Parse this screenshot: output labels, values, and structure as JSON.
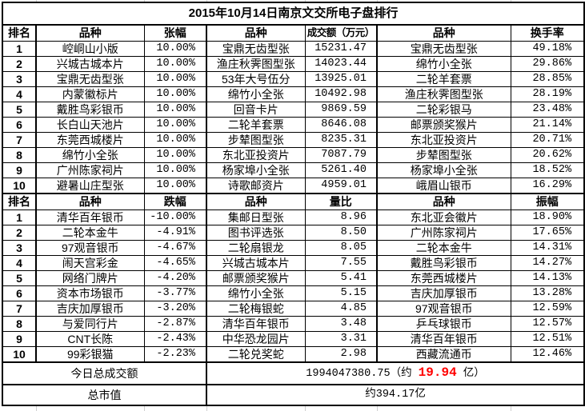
{
  "title": "2015年10月14日南京文交所电子盘排行",
  "colors": {
    "highlight": "#ff0000",
    "border": "#000000",
    "text": "#000000"
  },
  "chart_data": {
    "type": "table",
    "title": "2015年10月14日南京文交所电子盘排行",
    "sections": [
      "涨幅/成交额/换手率排行",
      "跌幅/量比/振幅排行"
    ]
  },
  "section1": {
    "headers": [
      "排名",
      "品种",
      "张幅",
      "品种",
      "成交额（万元）",
      "品种",
      "换手率"
    ],
    "rows": [
      [
        "1",
        "崆峒山小版",
        "10.00%",
        "宝鼎无齿型张",
        "15231.47",
        "宝鼎无齿型张",
        "49.18%"
      ],
      [
        "2",
        "兴城古城本片",
        "10.00%",
        "渔庄秋霁图型张",
        "14023.44",
        "绵竹小全张",
        "29.86%"
      ],
      [
        "3",
        "宝鼎无齿型张",
        "10.00%",
        "53年大号伍分",
        "13925.01",
        "二轮羊套票",
        "28.85%"
      ],
      [
        "4",
        "内蒙徽标片",
        "10.00%",
        "绵竹小全张",
        "10492.98",
        "渔庄秋霁图型张",
        "28.19%"
      ],
      [
        "5",
        "戴胜鸟彩银币",
        "10.00%",
        "回音卡片",
        "9869.59",
        "二轮彩银马",
        "23.48%"
      ],
      [
        "6",
        "长白山天池片",
        "10.00%",
        "二轮羊套票",
        "8646.08",
        "邮票颁奖猴片",
        "21.14%"
      ],
      [
        "7",
        "东莞西城楼片",
        "10.00%",
        "步辇图型张",
        "8235.31",
        "东北亚投资片",
        "20.71%"
      ],
      [
        "8",
        "绵竹小全张",
        "10.00%",
        "东北亚投资片",
        "7087.79",
        "步辇图型张",
        "20.62%"
      ],
      [
        "9",
        "广州陈家祠片",
        "10.00%",
        "杨家埠小全张",
        "5261.40",
        "杨家埠小全张",
        "18.52%"
      ],
      [
        "10",
        "避暑山庄型张",
        "10.00%",
        "诗歌邮资片",
        "4959.01",
        "峨眉山银币",
        "16.29%"
      ]
    ]
  },
  "section2": {
    "headers": [
      "排名",
      "品种",
      "跌幅",
      "品种",
      "量比",
      "品种",
      "振幅"
    ],
    "rows": [
      [
        "1",
        "清华百年银币",
        "-10.00%",
        "集邮日型张",
        "8.96",
        "东北亚会徽片",
        "18.90%"
      ],
      [
        "2",
        "二轮本金牛",
        "-4.91%",
        "图书评选张",
        "8.50",
        "广州陈家祠片",
        "17.65%"
      ],
      [
        "3",
        "97观音银币",
        "-4.67%",
        "二轮扇银龙",
        "8.05",
        "二轮本金牛",
        "14.31%"
      ],
      [
        "4",
        "闹天宫彩金",
        "-4.65%",
        "兴城古城本片",
        "7.55",
        "戴胜鸟彩银币",
        "14.27%"
      ],
      [
        "5",
        "网络门牌片",
        "-4.20%",
        "邮票颁奖猴片",
        "5.41",
        "东莞西城楼片",
        "14.13%"
      ],
      [
        "6",
        "资本市场银币",
        "-3.77%",
        "绵竹小全张",
        "5.15",
        "吉庆加厚银币",
        "13.28%"
      ],
      [
        "7",
        "吉庆加厚银币",
        "-3.20%",
        "二轮梅银蛇",
        "4.85",
        "97观音银币",
        "12.59%"
      ],
      [
        "8",
        "与爱同行片",
        "-2.87%",
        "清华百年银币",
        "3.48",
        "乒乓球银币",
        "12.57%"
      ],
      [
        "9",
        "CNT长陈",
        "-2.43%",
        "中华恐龙园片",
        "3.31",
        "清华百年银币",
        "12.51%"
      ],
      [
        "10",
        "99彩银猫",
        "-2.23%",
        "二轮兑奖蛇",
        "2.98",
        "西藏流通币",
        "12.46%"
      ]
    ]
  },
  "footer": {
    "total_turnover_label": "今日总成交额",
    "total_turnover_prefix": "1994047380.75（约 ",
    "total_turnover_highlight": "19.94",
    "total_turnover_suffix": " 亿）",
    "market_cap_label": "总市值",
    "market_cap_value": "约394.17亿"
  }
}
